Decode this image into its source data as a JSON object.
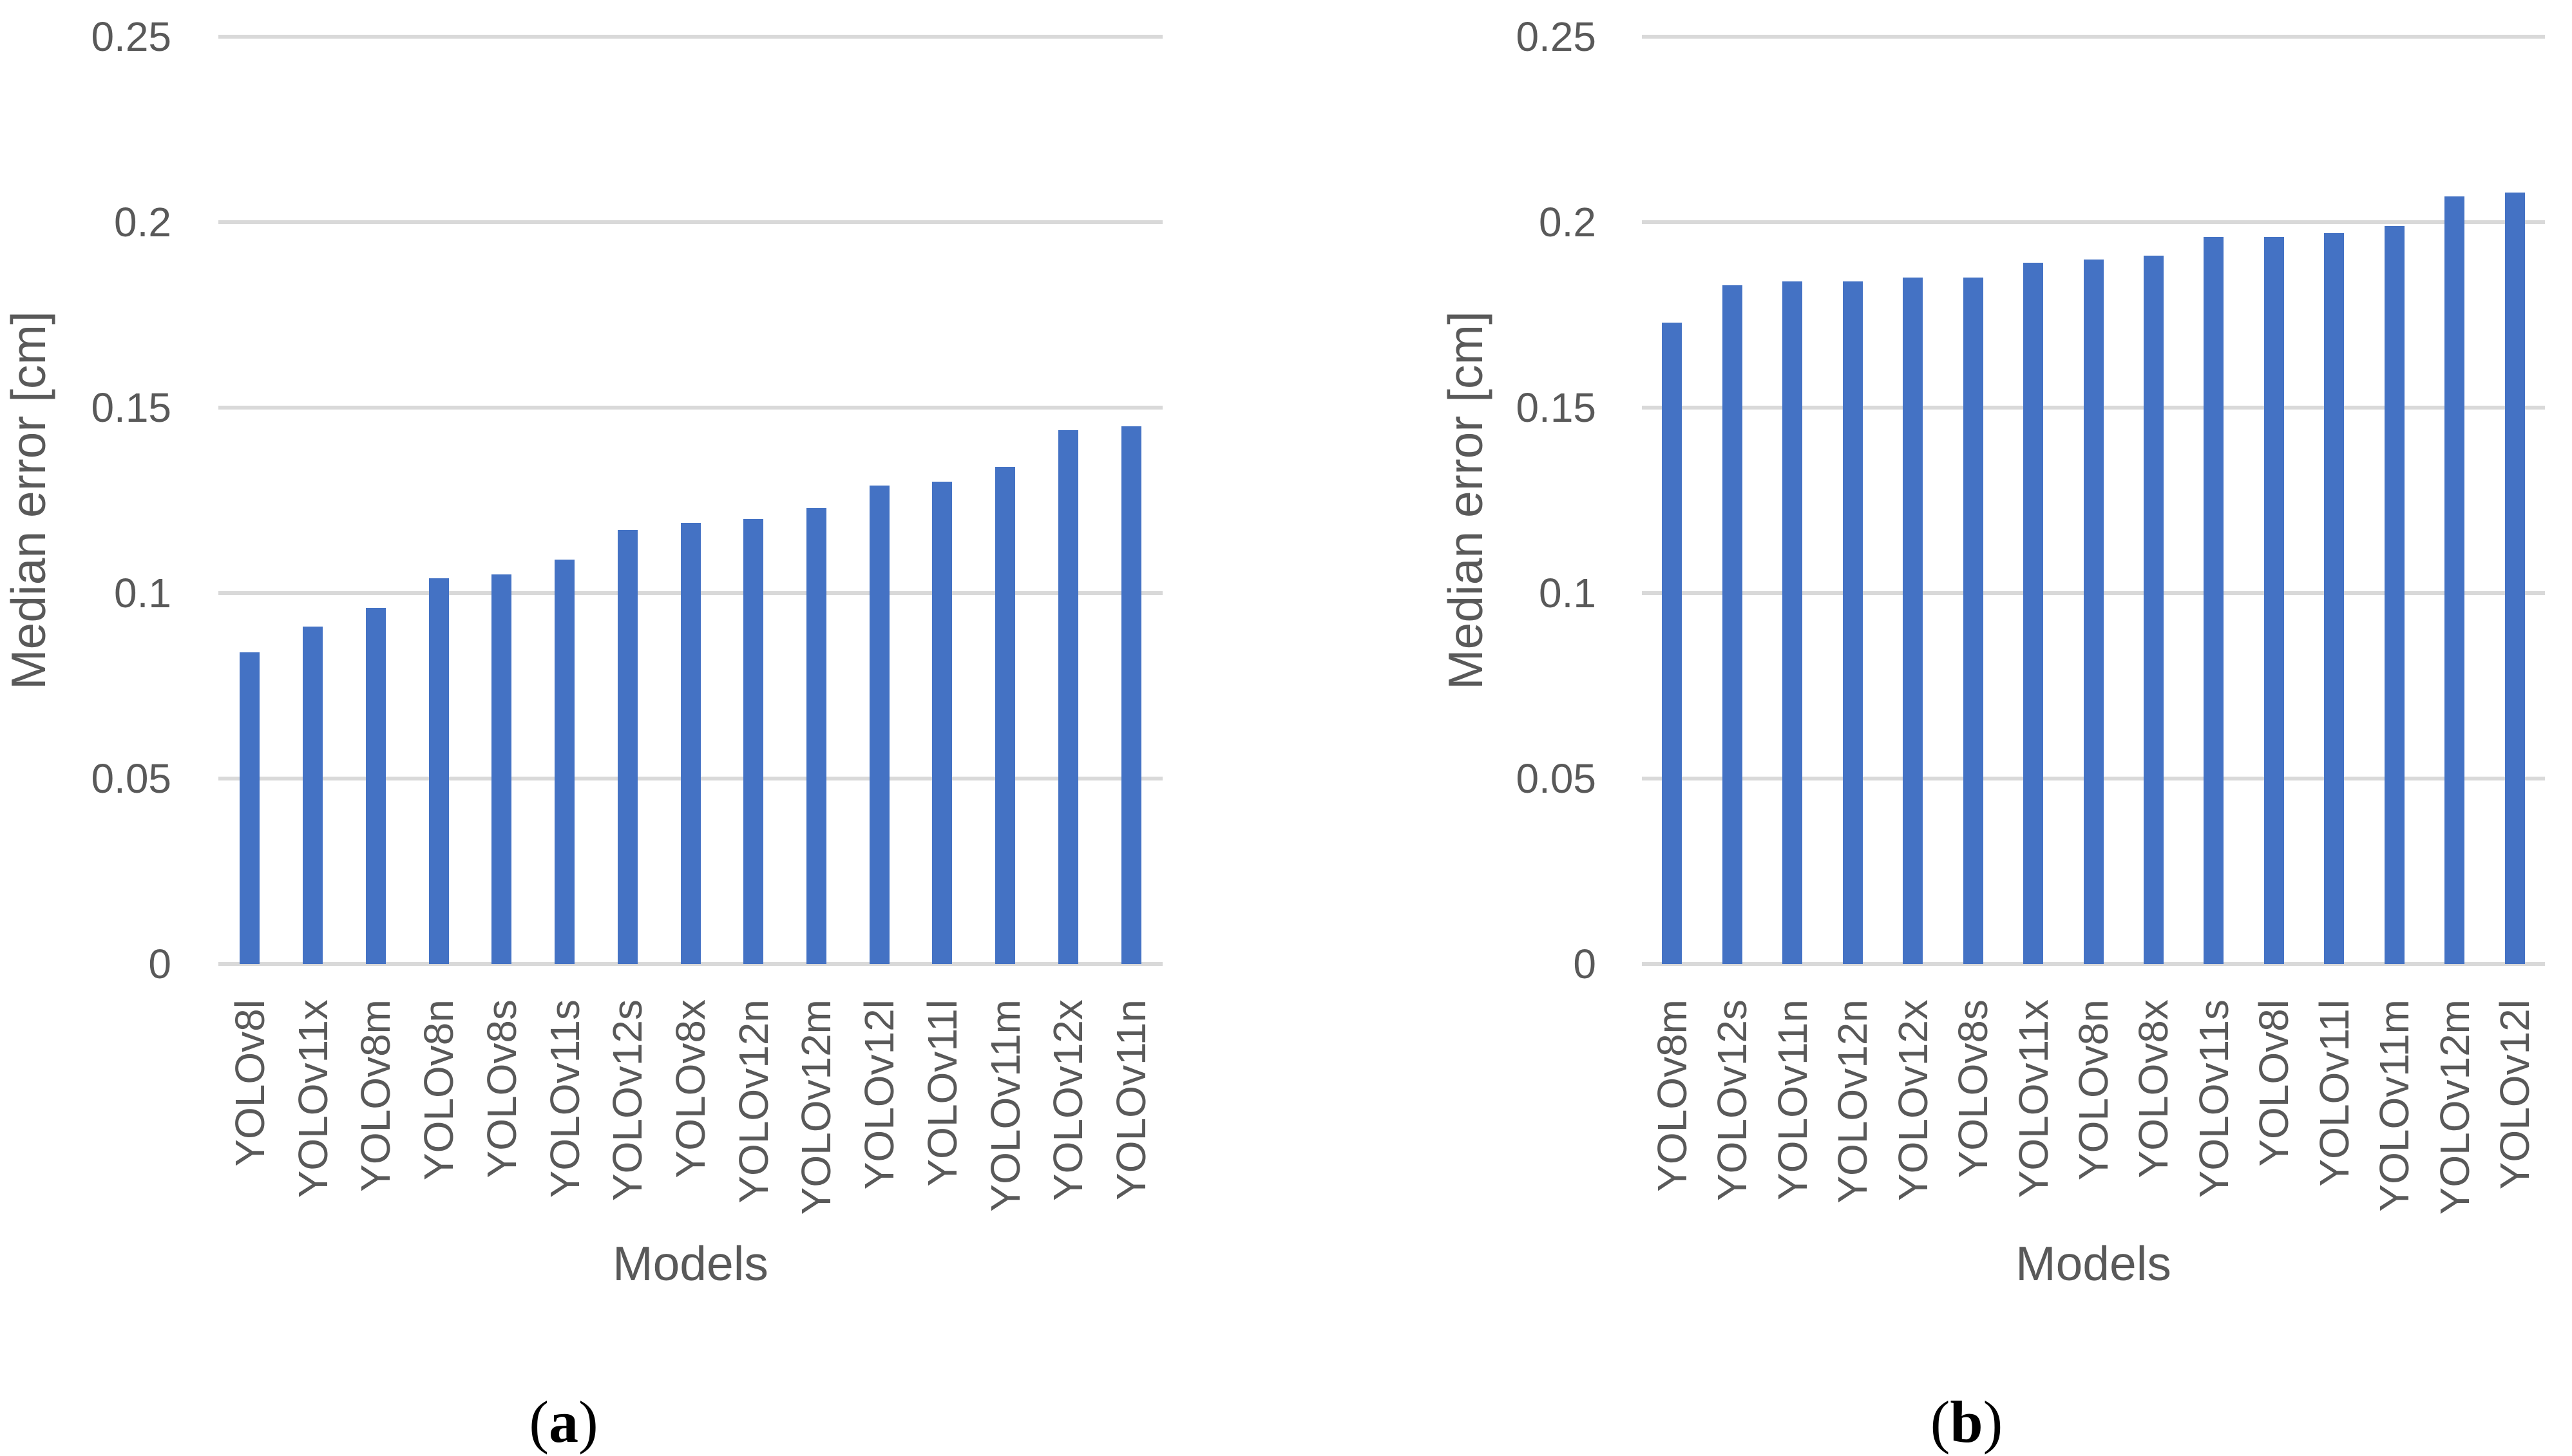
{
  "figure": {
    "captions": [
      {
        "open": "(",
        "letter": "a",
        "close": ")"
      },
      {
        "open": "(",
        "letter": "b",
        "close": ")"
      }
    ]
  },
  "colors": {
    "bar": "#4472C4",
    "grid": "#D9D9D9",
    "text": "#595959",
    "caption": "#000000"
  },
  "chart_data": [
    {
      "type": "bar",
      "panel": "a",
      "title": "",
      "xlabel": "Models",
      "ylabel": "Median error [cm]",
      "ylim": [
        0,
        0.25
      ],
      "yticks": [
        0,
        0.05,
        0.1,
        0.15,
        0.2,
        0.25
      ],
      "ytick_labels": [
        "0",
        "0.05",
        "0.1",
        "0.15",
        "0.2",
        "0.25"
      ],
      "grid": true,
      "legend": false,
      "bar_color": "#4472C4",
      "categories": [
        "YOLOv8l",
        "YOLOv11x",
        "YOLOv8m",
        "YOLOv8n",
        "YOLOv8s",
        "YOLOv11s",
        "YOLOv12s",
        "YOLOv8x",
        "YOLOv12n",
        "YOLOv12m",
        "YOLOv12l",
        "YOLOv11l",
        "YOLOv11m",
        "YOLOv12x",
        "YOLOv11n"
      ],
      "values": [
        0.084,
        0.091,
        0.096,
        0.104,
        0.105,
        0.109,
        0.117,
        0.119,
        0.12,
        0.123,
        0.129,
        0.13,
        0.134,
        0.144,
        0.145
      ]
    },
    {
      "type": "bar",
      "panel": "b",
      "title": "",
      "xlabel": "Models",
      "ylabel": "Median error [cm]",
      "ylim": [
        0,
        0.25
      ],
      "yticks": [
        0,
        0.05,
        0.1,
        0.15,
        0.2,
        0.25
      ],
      "ytick_labels": [
        "0",
        "0.05",
        "0.1",
        "0.15",
        "0.2",
        "0.25"
      ],
      "grid": true,
      "legend": false,
      "bar_color": "#4472C4",
      "categories": [
        "YOLOv8m",
        "YOLOv12s",
        "YOLOv11n",
        "YOLOv12n",
        "YOLOv12x",
        "YOLOv8s",
        "YOLOv11x",
        "YOLOv8n",
        "YOLOv8x",
        "YOLOv11s",
        "YOLOv8l",
        "YOLOv11l",
        "YOLOv11m",
        "YOLOv12m",
        "YOLOv12l"
      ],
      "values": [
        0.173,
        0.183,
        0.184,
        0.184,
        0.185,
        0.185,
        0.189,
        0.19,
        0.191,
        0.196,
        0.196,
        0.197,
        0.199,
        0.207,
        0.208
      ]
    }
  ]
}
